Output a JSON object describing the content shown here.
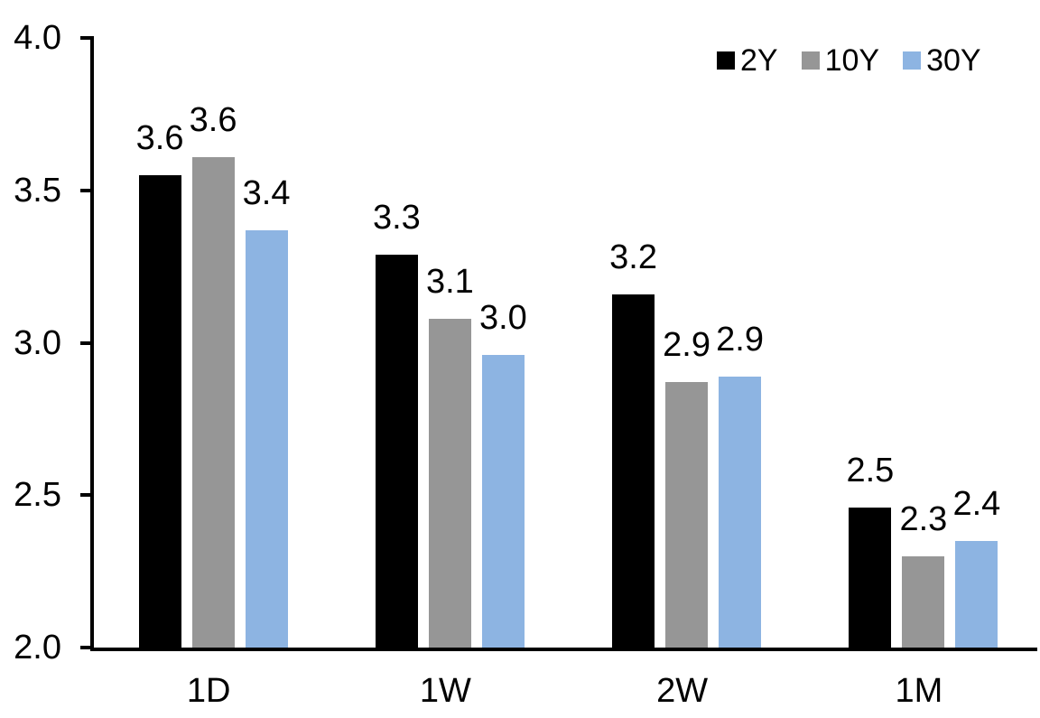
{
  "chart_data": {
    "type": "bar",
    "title": "",
    "xlabel": "",
    "ylabel": "",
    "categories": [
      "1D",
      "1W",
      "2W",
      "1M"
    ],
    "series": [
      {
        "name": "2Y",
        "color": "#000000",
        "values": [
          3.55,
          3.29,
          3.16,
          2.46
        ],
        "data_labels": [
          "3.6",
          "3.3",
          "3.2",
          "2.5"
        ]
      },
      {
        "name": "10Y",
        "color": "#969696",
        "values": [
          3.61,
          3.08,
          2.87,
          2.3
        ],
        "data_labels": [
          "3.6",
          "3.1",
          "2.9",
          "2.3"
        ]
      },
      {
        "name": "30Y",
        "color": "#8DB4E2",
        "values": [
          3.37,
          2.96,
          2.89,
          2.35
        ],
        "data_labels": [
          "3.4",
          "3.0",
          "2.9",
          "2.4"
        ]
      }
    ],
    "ylim": [
      2.0,
      4.0
    ],
    "yticks": [
      2.0,
      2.5,
      3.0,
      3.5,
      4.0
    ],
    "ytick_labels": [
      "2.0",
      "2.5",
      "3.0",
      "3.5",
      "4.0"
    ],
    "grid": false,
    "legend_position": "top-right",
    "axis_color": "#000000",
    "background_color": "#FFFFFF"
  }
}
